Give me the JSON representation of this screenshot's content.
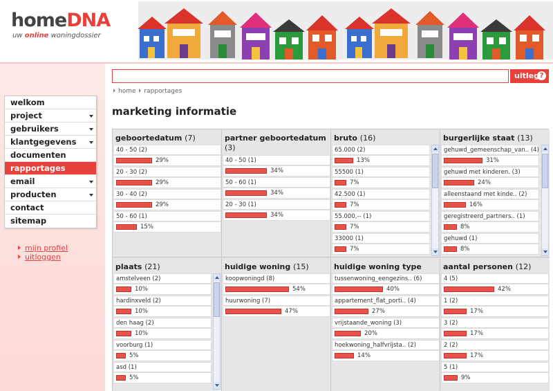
{
  "brand": {
    "home": "home",
    "dna": "DNA",
    "tag_pre": "uw ",
    "tag_online": "online",
    "tag_post": " woningdossier"
  },
  "search": {
    "value": "",
    "button": "uitleg",
    "help_icon": "?"
  },
  "nav": [
    {
      "label": "welkom",
      "dropdown": false,
      "active": false
    },
    {
      "label": "project",
      "dropdown": true,
      "active": false
    },
    {
      "label": "gebruikers",
      "dropdown": true,
      "active": false
    },
    {
      "label": "klantgegevens",
      "dropdown": true,
      "active": false
    },
    {
      "label": "documenten",
      "dropdown": false,
      "active": false
    },
    {
      "label": "rapportages",
      "dropdown": false,
      "active": true
    },
    {
      "label": "email",
      "dropdown": true,
      "active": false
    },
    {
      "label": "producten",
      "dropdown": true,
      "active": false
    },
    {
      "label": "contact",
      "dropdown": false,
      "active": false
    },
    {
      "label": "sitemap",
      "dropdown": false,
      "active": false
    }
  ],
  "sublinks": [
    "mijn profiel",
    "uitloggen"
  ],
  "breadcrumb": [
    "home",
    "rapportages"
  ],
  "page_title": "marketing informatie",
  "colors": {
    "accent": "#e8413b",
    "bar": "#e8534b",
    "pink_band": "#fcd9d6"
  },
  "panels": [
    {
      "title": "geboortedatum",
      "count": "(7)",
      "scroll": false,
      "rows": [
        {
          "label": "40 - 50 (2)",
          "pct": "29%",
          "v": 0.29
        },
        {
          "label": "20 - 30 (2)",
          "pct": "29%",
          "v": 0.29
        },
        {
          "label": "30 - 40 (2)",
          "pct": "29%",
          "v": 0.29
        },
        {
          "label": "50 - 60 (1)",
          "pct": "15%",
          "v": 0.15
        }
      ]
    },
    {
      "title": "partner geboortedatum",
      "count": "(3)",
      "scroll": false,
      "rows": [
        {
          "label": "40 - 50 (1)",
          "pct": "34%",
          "v": 0.34
        },
        {
          "label": "50 - 60 (1)",
          "pct": "34%",
          "v": 0.34
        },
        {
          "label": "20 - 30 (1)",
          "pct": "34%",
          "v": 0.34
        }
      ]
    },
    {
      "title": "bruto",
      "count": "(16)",
      "scroll": true,
      "rows": [
        {
          "label": "65.000 (2)",
          "pct": "13%",
          "v": 0.13
        },
        {
          "label": "55500 (1)",
          "pct": "7%",
          "v": 0.07
        },
        {
          "label": "42.500 (1)",
          "pct": "7%",
          "v": 0.07
        },
        {
          "label": "55.000,-- (1)",
          "pct": "7%",
          "v": 0.07
        },
        {
          "label": "33000 (1)",
          "pct": "7%",
          "v": 0.07
        }
      ]
    },
    {
      "title": "burgerlijke staat",
      "count": "(13)",
      "scroll": true,
      "rows": [
        {
          "label": "gehuwd_gemeenschap_van.. (4)",
          "pct": "31%",
          "v": 0.31
        },
        {
          "label": "gehuwd met kinderen. (3)",
          "pct": "24%",
          "v": 0.24
        },
        {
          "label": "alleenstaand met kinde.. (2)",
          "pct": "16%",
          "v": 0.16
        },
        {
          "label": "geregistreerd_partners.. (1)",
          "pct": "8%",
          "v": 0.08
        },
        {
          "label": "gehuwd (1)",
          "pct": "8%",
          "v": 0.08
        }
      ]
    },
    {
      "title": "plaats",
      "count": "(21)",
      "scroll": true,
      "rows": [
        {
          "label": "amstelveen (2)",
          "pct": "10%",
          "v": 0.1
        },
        {
          "label": "hardinxveld (2)",
          "pct": "10%",
          "v": 0.1
        },
        {
          "label": "den haag (2)",
          "pct": "10%",
          "v": 0.1
        },
        {
          "label": "voorburg (1)",
          "pct": "5%",
          "v": 0.05
        },
        {
          "label": "asd (1)",
          "pct": "5%",
          "v": 0.05
        }
      ]
    },
    {
      "title": "huidige woning",
      "count": "(15)",
      "scroll": false,
      "rows": [
        {
          "label": "koopwoningd (8)",
          "pct": "54%",
          "v": 0.54
        },
        {
          "label": "huurwoning (7)",
          "pct": "47%",
          "v": 0.47
        }
      ]
    },
    {
      "title": "huidige woning type",
      "count": "(15)",
      "scroll": false,
      "rows": [
        {
          "label": "tussenwoning_eengezins.. (6)",
          "pct": "40%",
          "v": 0.4
        },
        {
          "label": "appartement_flat_porti.. (4)",
          "pct": "27%",
          "v": 0.27
        },
        {
          "label": "vrijstaande_woning (3)",
          "pct": "20%",
          "v": 0.2
        },
        {
          "label": "hoekwoning_halfvrijsta.. (2)",
          "pct": "14%",
          "v": 0.14
        }
      ]
    },
    {
      "title": "aantal personen",
      "count": "(12)",
      "scroll": false,
      "rows": [
        {
          "label": "4 (5)",
          "pct": "42%",
          "v": 0.42
        },
        {
          "label": "1 (2)",
          "pct": "17%",
          "v": 0.17
        },
        {
          "label": "3 (2)",
          "pct": "17%",
          "v": 0.17
        },
        {
          "label": "2 (2)",
          "pct": "17%",
          "v": 0.17
        },
        {
          "label": "5 (1)",
          "pct": "9%",
          "v": 0.09
        }
      ]
    }
  ]
}
